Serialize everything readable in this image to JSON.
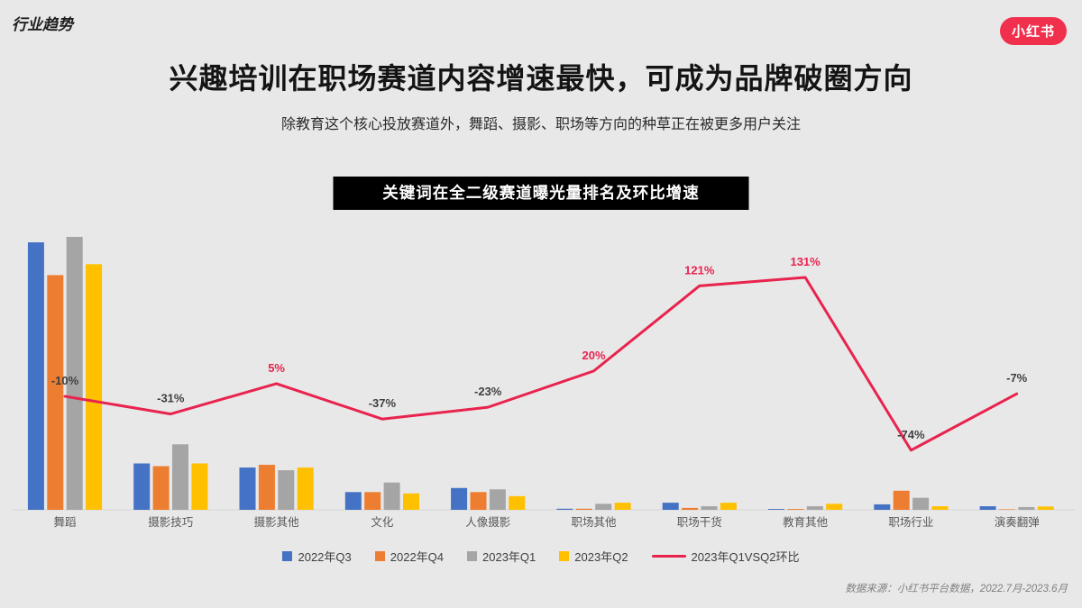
{
  "header": {
    "tag": "行业趋势",
    "logo": "小红书"
  },
  "title": "兴趣培训在职场赛道内容增速最快，可成为品牌破圈方向",
  "subtitle": "除教育这个核心投放赛道外，舞蹈、摄影、职场等方向的种草正在被更多用户关注",
  "footer": {
    "source": "数据来源：小红书平台数据，2022.7月-2023.6月"
  },
  "colors": {
    "background": "#E9E8E8",
    "banner_bg": "#000000",
    "banner_text": "#FFFFFF",
    "brand_red": "#F1304E",
    "axis_line": "#D8D6D6",
    "category_label": "#595959",
    "label_color_positive": "#E8234E",
    "label_color_negative": "#3F3F3F"
  },
  "chart_data": {
    "type": "bar+line combo",
    "title": "关键词在全二级赛道曝光量排名及环比增速",
    "categories": [
      "舞蹈",
      "摄影技巧",
      "摄影其他",
      "文化",
      "人像摄影",
      "职场其他",
      "职场干货",
      "教育其他",
      "职场行业",
      "演奏翻弹"
    ],
    "value_axis_note": "no numeric axis shown; bar values are relative exposure estimated from bar heights, max = 100",
    "legend_position": "bottom",
    "series": [
      {
        "name": "2022年Q3",
        "type": "bar",
        "color": "#4472C4",
        "values": [
          98,
          17,
          15.5,
          6.5,
          8,
          0.4,
          2.6,
          0.3,
          2,
          1.3
        ]
      },
      {
        "name": "2022年Q4",
        "type": "bar",
        "color": "#ED7D31",
        "values": [
          86,
          16,
          16.5,
          6.5,
          6.5,
          0.4,
          0.7,
          0.3,
          7,
          0.2
        ]
      },
      {
        "name": "2023年Q1",
        "type": "bar",
        "color": "#A5A5A5",
        "values": [
          100,
          24,
          14.5,
          10,
          7.5,
          2.2,
          1.3,
          1.3,
          4.4,
          1
        ]
      },
      {
        "name": "2023年Q2",
        "type": "bar",
        "color": "#FFC000",
        "values": [
          90,
          17,
          15.5,
          6,
          5,
          2.6,
          2.6,
          2.2,
          1.3,
          1.2
        ]
      },
      {
        "name": "2023年Q1VSQ2环比",
        "type": "line",
        "color": "#E8234E",
        "values": [
          -10,
          -31,
          5,
          -37,
          -23,
          20,
          121,
          131,
          -74,
          -7
        ],
        "labels": [
          "-10%",
          "-31%",
          "5%",
          "-37%",
          "-23%",
          "20%",
          "121%",
          "131%",
          "-74%",
          "-7%"
        ]
      }
    ]
  }
}
